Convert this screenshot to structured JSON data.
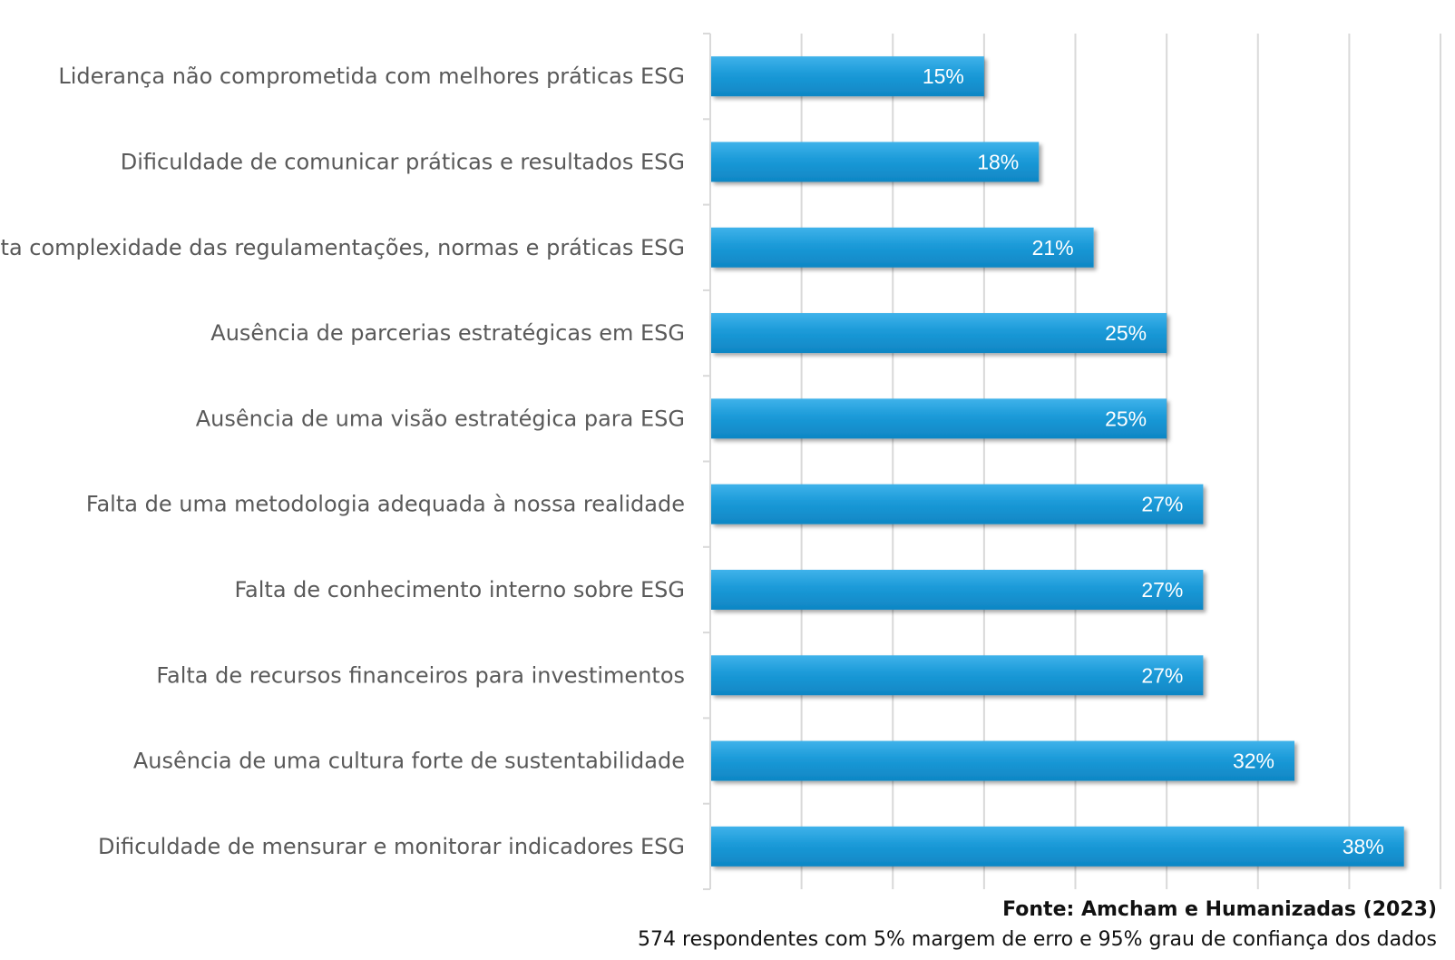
{
  "chart_data": {
    "type": "bar",
    "orientation": "horizontal",
    "categories": [
      "Liderança não comprometida com melhores práticas ESG",
      "Dificuldade de comunicar práticas e resultados ESG",
      "Alta complexidade das regulamentações, normas e práticas ESG",
      "Ausência de parcerias estratégicas em ESG",
      "Ausência de uma visão estratégica para ESG",
      "Falta de uma metodologia adequada à nossa realidade",
      "Falta de conhecimento interno sobre ESG",
      "Falta de recursos financeiros para investimentos",
      "Ausência de uma cultura forte de sustentabilidade",
      "Dificuldade de mensurar e monitorar indicadores ESG"
    ],
    "values": [
      15,
      18,
      21,
      25,
      25,
      27,
      27,
      27,
      32,
      38
    ],
    "value_labels": [
      "15%",
      "18%",
      "21%",
      "25%",
      "25%",
      "27%",
      "27%",
      "27%",
      "32%",
      "38%"
    ],
    "xlim": [
      0,
      40
    ],
    "x_grid_step": 5,
    "grid": true,
    "legend": "none",
    "bar_color": "#1a9ad8"
  },
  "source": {
    "title": "Fonte: Amcham e Humanizadas (2023)",
    "note": "574 respondentes com 5% margem de erro e 95% grau de confiança dos dados"
  }
}
